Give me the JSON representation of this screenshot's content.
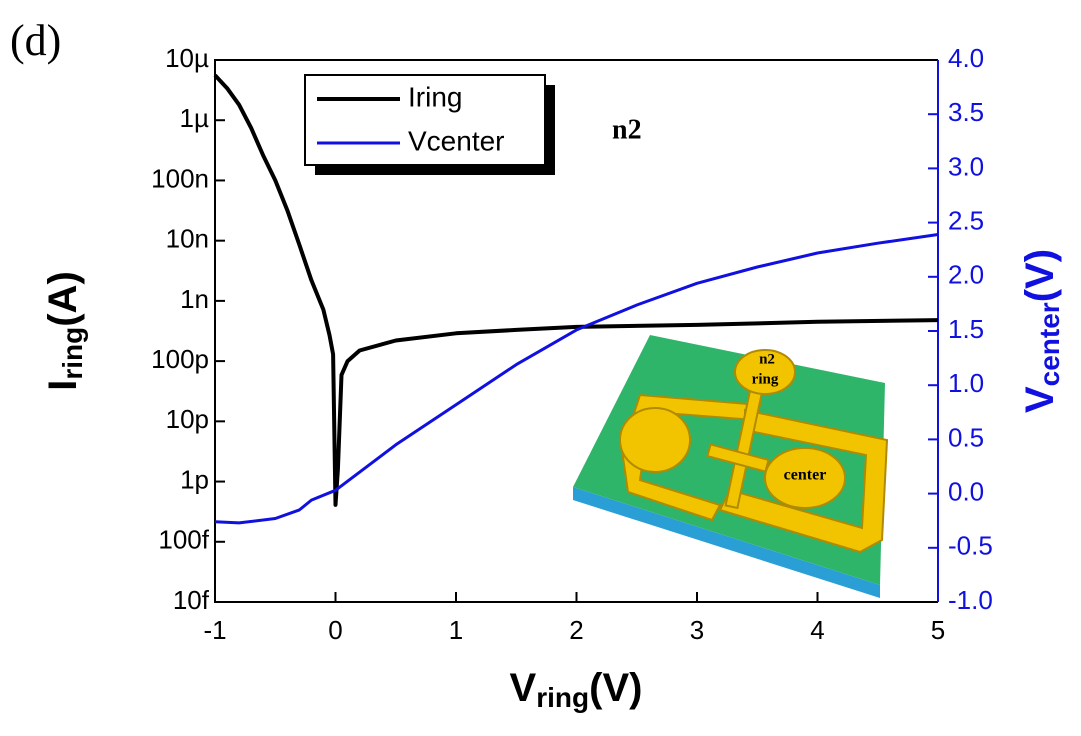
{
  "chart_data": {
    "type": "line",
    "panel_label": "(d)",
    "annotation": "n2",
    "x_label": {
      "main": "V",
      "sub": "ring",
      "unit": "(V)"
    },
    "y_label": {
      "main": "I",
      "sub": "ring",
      "unit": "(A)"
    },
    "y2_label": {
      "main": "V",
      "sub": "center",
      "unit": "(V)"
    },
    "inset": {
      "pad_top": "n2",
      "pad_top_2": "ring",
      "pad_center": "center"
    },
    "xlim": [
      -1,
      5
    ],
    "xticks": [
      -1,
      0,
      1,
      2,
      3,
      4,
      5
    ],
    "ylog": true,
    "ylim": [
      1e-14,
      1e-05
    ],
    "yticks": [
      {
        "value": 1e-14,
        "label": "10f"
      },
      {
        "value": 1e-13,
        "label": "100f"
      },
      {
        "value": 1e-12,
        "label": "1p"
      },
      {
        "value": 1e-11,
        "label": "10p"
      },
      {
        "value": 1e-10,
        "label": "100p"
      },
      {
        "value": 1e-09,
        "label": "1n"
      },
      {
        "value": 1e-08,
        "label": "10n"
      },
      {
        "value": 1e-07,
        "label": "100n"
      },
      {
        "value": 1e-06,
        "label": "1µ"
      },
      {
        "value": 1e-05,
        "label": "10µ"
      }
    ],
    "y2lim": [
      -1,
      4
    ],
    "y2ticks": [
      {
        "value": -1,
        "label": "-1.0"
      },
      -0.5,
      {
        "value": 0,
        "label": "0.0"
      },
      0.5,
      {
        "value": 1,
        "label": "1.0"
      },
      1.5,
      {
        "value": 2,
        "label": "2.0"
      },
      2.5,
      {
        "value": 3,
        "label": "3.0"
      },
      3.5,
      {
        "value": 4,
        "label": "4.0"
      }
    ],
    "legend": "upper-left",
    "series": [
      {
        "name": "Iring",
        "color": "#000000",
        "x": [
          -1,
          -0.9,
          -0.8,
          -0.7,
          -0.6,
          -0.5,
          -0.4,
          -0.3,
          -0.2,
          -0.1,
          -0.05,
          -0.02,
          0,
          0.02,
          0.05,
          0.1,
          0.2,
          0.5,
          1,
          1.5,
          2,
          3,
          4,
          5
        ],
        "values": [
          5.6e-06,
          3.4e-06,
          1.8e-06,
          7.4e-07,
          2.6e-07,
          1e-07,
          3.2e-08,
          8.5e-09,
          2.2e-09,
          7.1e-10,
          2.7e-10,
          1.3e-10,
          4.1e-13,
          1.6e-12,
          5.9e-11,
          1e-10,
          1.5e-10,
          2.2e-10,
          2.9e-10,
          3.3e-10,
          3.7e-10,
          4e-10,
          4.5e-10,
          4.8e-10
        ]
      },
      {
        "name": "Vcenter",
        "color": "#1010e0",
        "axis": "y2",
        "x": [
          -1,
          -0.8,
          -0.5,
          -0.3,
          -0.2,
          0,
          0.5,
          1,
          1.5,
          2,
          2.5,
          3,
          3.5,
          4,
          4.5,
          5
        ],
        "values": [
          -0.26,
          -0.27,
          -0.23,
          -0.15,
          -0.06,
          0.03,
          0.45,
          0.82,
          1.19,
          1.51,
          1.74,
          1.94,
          2.09,
          2.22,
          2.31,
          2.39
        ]
      }
    ]
  }
}
